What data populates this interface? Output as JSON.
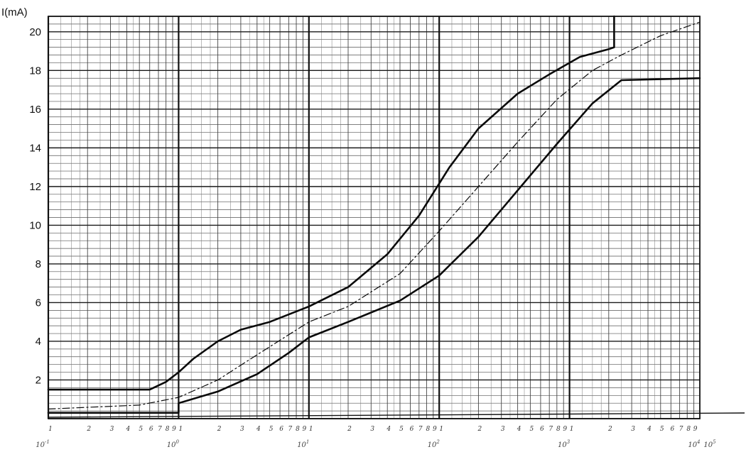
{
  "chart_data": {
    "type": "line",
    "title": "",
    "xlabel": "",
    "ylabel": "I(mA)",
    "x_scale": "log",
    "xlim": [
      0.1,
      10000
    ],
    "ylim": [
      0,
      20.8
    ],
    "y_ticks": [
      2,
      4,
      6,
      8,
      10,
      12,
      14,
      16,
      18,
      20
    ],
    "x_decade_labels": [
      {
        "base": "10",
        "exp": "-1",
        "value": 0.1
      },
      {
        "base": "10",
        "exp": "0",
        "value": 1
      },
      {
        "base": "10",
        "exp": "1",
        "value": 10
      },
      {
        "base": "10",
        "exp": "2",
        "value": 100
      },
      {
        "base": "10",
        "exp": "3",
        "value": 1000
      },
      {
        "base": "10",
        "exp": "4",
        "value": 10000
      },
      {
        "base": "10",
        "exp": "5",
        "value": 100000
      }
    ],
    "x_minor_labels": [
      "1",
      "2",
      "3",
      "4",
      "5",
      "6",
      "7",
      "8",
      "9"
    ],
    "grid": true,
    "series": [
      {
        "style": "solid-bold",
        "x": [
          0.1,
          0.6,
          0.8,
          1.0,
          1.3,
          2.0,
          3.0,
          5.0,
          10,
          20,
          40,
          70,
          120,
          200,
          400,
          700,
          1200,
          2000,
          2200,
          2200
        ],
        "y": [
          1.5,
          1.5,
          1.9,
          2.4,
          3.1,
          4.0,
          4.6,
          5.0,
          5.8,
          6.8,
          8.5,
          10.5,
          13.0,
          15.0,
          16.8,
          17.8,
          18.7,
          19.1,
          19.2,
          20.8
        ]
      },
      {
        "style": "dash-dot",
        "x": [
          0.1,
          0.5,
          1.0,
          2.0,
          4.0,
          10,
          20,
          50,
          100,
          200,
          400,
          800,
          1500,
          2500,
          5000,
          10000
        ],
        "y": [
          0.5,
          0.7,
          1.1,
          2.0,
          3.3,
          5.0,
          5.8,
          7.5,
          9.7,
          12.0,
          14.3,
          16.5,
          18.0,
          18.8,
          19.8,
          20.5
        ]
      },
      {
        "style": "solid-bold",
        "x": [
          0.1,
          1.0,
          1.0,
          2.0,
          4.0,
          7.0,
          10,
          20,
          50,
          100,
          200,
          400,
          800,
          1500,
          2500,
          10000
        ],
        "y": [
          0.3,
          0.3,
          0.8,
          1.4,
          2.3,
          3.4,
          4.2,
          5.0,
          6.1,
          7.4,
          9.4,
          11.8,
          14.2,
          16.3,
          17.5,
          17.6
        ]
      }
    ]
  }
}
